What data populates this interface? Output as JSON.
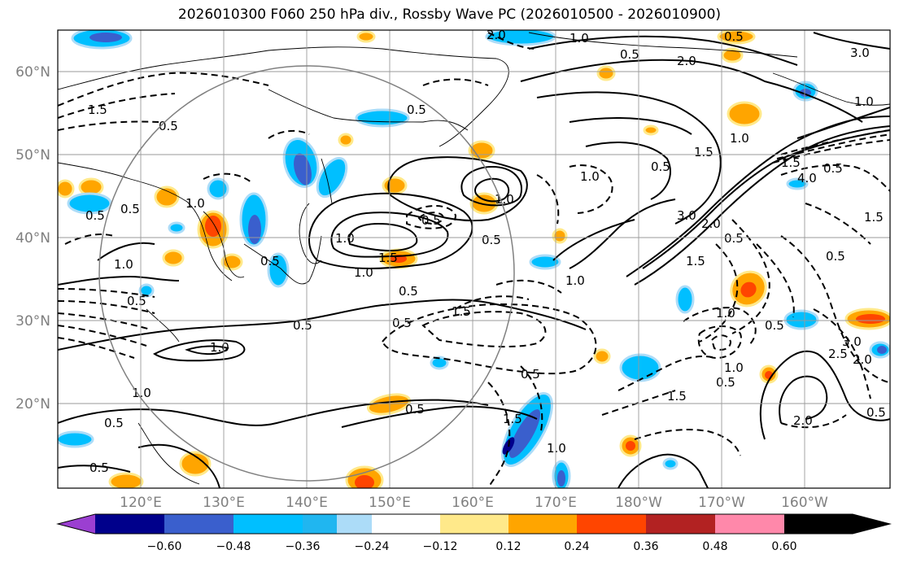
{
  "title": "2026010300 F060 250 hPa div., Rossby Wave PC (2026010500 - 2026010900)",
  "lat_labels": [
    "60°N",
    "50°N",
    "40°N",
    "30°N",
    "20°N"
  ],
  "lon_labels": [
    "120°E",
    "130°E",
    "140°E",
    "150°E",
    "160°E",
    "170°E",
    "180°W",
    "170°W",
    "160°W"
  ],
  "colorbar": {
    "colors": [
      "#9b3fd1",
      "#00008b",
      "#3a5fcd",
      "#00bfff",
      "#20b6f0",
      "#acdcf8",
      "#ffffff",
      "#ffe98a",
      "#ffa500",
      "#ff4500",
      "#b22222",
      "#ff88aa"
    ],
    "tick_labels": [
      "−0.60",
      "−0.48",
      "−0.36",
      "−0.24",
      "−0.12",
      "0.12",
      "0.24",
      "0.36",
      "0.48",
      "0.60"
    ]
  },
  "contour_labels": [
    "2.0",
    "1.0",
    "0.5",
    "0.5",
    "2.0",
    "3.0",
    "1.0",
    "1.5",
    "0.5",
    "0.5",
    "1.5",
    "1.0",
    "1.0",
    "0.5",
    "1.5",
    "4.0",
    "0.5",
    "0.5",
    "1.0",
    "0.5",
    "0.5",
    "3.0",
    "1.0",
    "2.0",
    "0.5",
    "1.0",
    "1.5",
    "0.5",
    "1.5",
    "0.5",
    "0.5",
    "1.0",
    "1.5",
    "0.5",
    "0.5",
    "1.0",
    "1.0",
    "1.0",
    "0.5",
    "0.5",
    "0.5",
    "3.0",
    "2.0",
    "2.5",
    "1.0",
    "0.5",
    "1.5",
    "1.0",
    "0.5",
    "1.0",
    "0.5",
    "1.5",
    "2.0",
    "1.5",
    "0.5",
    "0.5",
    "1.0",
    "0.5"
  ]
}
